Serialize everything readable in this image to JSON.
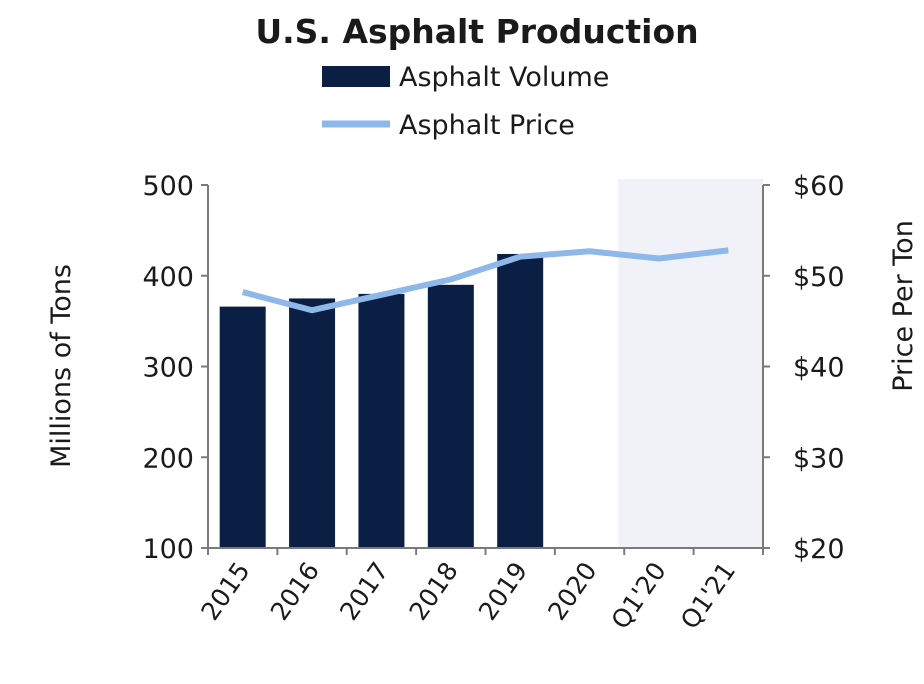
{
  "chart_data": {
    "type": "bar",
    "title": "U.S. Asphalt Production",
    "categories": [
      "2015",
      "2016",
      "2017",
      "2018",
      "2019",
      "2020",
      "Q1'20",
      "Q1'21"
    ],
    "series": [
      {
        "name": "Asphalt Volume",
        "kind": "bar",
        "axis": "left",
        "color": "#0b1f45",
        "values": [
          366,
          375,
          380,
          390,
          424,
          null,
          null,
          null
        ]
      },
      {
        "name": "Asphalt Price",
        "kind": "line",
        "axis": "right",
        "color": "#8fb8ea",
        "values": [
          48.2,
          46.2,
          47.9,
          49.6,
          52.1,
          52.7,
          51.9,
          52.8
        ]
      }
    ],
    "ylabel": "Millions of Tons",
    "ylim": [
      100,
      500
    ],
    "yticks": [
      "100",
      "200",
      "300",
      "400",
      "500"
    ],
    "y2label": "Price Per Ton",
    "y2lim": [
      20,
      60
    ],
    "y2ticks": [
      "$20",
      "$30",
      "$40",
      "$50",
      "$60"
    ],
    "highlight_region": {
      "categories": [
        "Q1'20",
        "Q1'21"
      ],
      "color": "#f1f1f8"
    },
    "legend_position": "top-center",
    "grid": false
  }
}
